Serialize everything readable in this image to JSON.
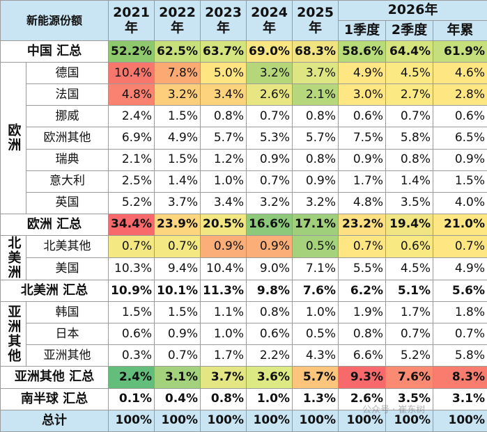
{
  "header": {
    "title": "新能源份额",
    "years": [
      "2021\n年",
      "2022\n年",
      "2023\n年",
      "2024\n年",
      "2025\n年"
    ],
    "year2026": "2026年",
    "sub2026": [
      "1季度",
      "2季度",
      "年累"
    ]
  },
  "rows": [
    {
      "label": "中国 汇总",
      "cells": [
        {
          "v": "52.2%",
          "bg": "#8fc96e"
        },
        {
          "v": "62.5%",
          "bg": "#c7e07c"
        },
        {
          "v": "63.7%",
          "bg": "#d4e47e"
        },
        {
          "v": "69.0%",
          "bg": "#f9e582"
        },
        {
          "v": "68.3%",
          "bg": "#f1e381"
        },
        {
          "v": "58.6%",
          "bg": "#b7db78"
        },
        {
          "v": "64.4%",
          "bg": "#d5e47e"
        },
        {
          "v": "61.9%",
          "bg": "#c4df7b"
        }
      ]
    },
    {
      "region": "欧洲",
      "label": "德国",
      "cells": [
        {
          "v": "10.4%",
          "bg": "#f8776d"
        },
        {
          "v": "7.8%",
          "bg": "#fcaa74"
        },
        {
          "v": "5.0%",
          "bg": "#fee582"
        },
        {
          "v": "3.2%",
          "bg": "#b5d77a"
        },
        {
          "v": "3.7%",
          "bg": "#dde683"
        },
        {
          "v": "4.9%",
          "bg": "#fee683"
        },
        {
          "v": "4.5%",
          "bg": "#fbe983"
        },
        {
          "v": "4.6%",
          "bg": "#fee683"
        }
      ]
    },
    {
      "label": "法国",
      "cells": [
        {
          "v": "4.8%",
          "bg": "#f98270"
        },
        {
          "v": "3.2%",
          "bg": "#fdcf7c"
        },
        {
          "v": "3.4%",
          "bg": "#fdd37d"
        },
        {
          "v": "2.6%",
          "bg": "#e7e683"
        },
        {
          "v": "2.1%",
          "bg": "#b6d77b"
        },
        {
          "v": "3.0%",
          "bg": "#fee683"
        },
        {
          "v": "2.7%",
          "bg": "#fbe983"
        },
        {
          "v": "2.8%",
          "bg": "#fee683"
        }
      ]
    },
    {
      "label": "挪威",
      "cells": [
        {
          "v": "2.4%"
        },
        {
          "v": "1.5%"
        },
        {
          "v": "0.8%"
        },
        {
          "v": "0.7%"
        },
        {
          "v": "0.8%"
        },
        {
          "v": "0.6%"
        },
        {
          "v": "0.7%"
        },
        {
          "v": "0.6%"
        }
      ]
    },
    {
      "label": "欧洲其他",
      "cells": [
        {
          "v": "6.9%"
        },
        {
          "v": "4.9%"
        },
        {
          "v": "5.7%"
        },
        {
          "v": "5.3%"
        },
        {
          "v": "5.7%"
        },
        {
          "v": "7.5%"
        },
        {
          "v": "5.8%"
        },
        {
          "v": "6.5%"
        }
      ]
    },
    {
      "label": "瑞典",
      "cells": [
        {
          "v": "2.1%"
        },
        {
          "v": "1.5%"
        },
        {
          "v": "1.2%"
        },
        {
          "v": "0.9%"
        },
        {
          "v": "0.8%"
        },
        {
          "v": "0.9%"
        },
        {
          "v": "0.8%"
        },
        {
          "v": "0.9%"
        }
      ]
    },
    {
      "label": "意大利",
      "cells": [
        {
          "v": "2.5%"
        },
        {
          "v": "1.4%"
        },
        {
          "v": "1.0%"
        },
        {
          "v": "0.7%"
        },
        {
          "v": "0.9%"
        },
        {
          "v": "1.7%"
        },
        {
          "v": "1.4%"
        },
        {
          "v": "1.5%"
        }
      ]
    },
    {
      "label": "英国",
      "cells": [
        {
          "v": "5.2%"
        },
        {
          "v": "3.7%"
        },
        {
          "v": "3.4%"
        },
        {
          "v": "3.2%"
        },
        {
          "v": "3.2%"
        },
        {
          "v": "4.8%"
        },
        {
          "v": "3.5%"
        },
        {
          "v": "4.0%"
        }
      ]
    },
    {
      "label": "欧洲 汇总",
      "cells": [
        {
          "v": "34.4%",
          "bg": "#f8696b"
        },
        {
          "v": "23.9%",
          "bg": "#fdd57f"
        },
        {
          "v": "20.5%",
          "bg": "#f2e683"
        },
        {
          "v": "16.6%",
          "bg": "#8cc97b"
        },
        {
          "v": "17.1%",
          "bg": "#a0cf7c"
        },
        {
          "v": "23.2%",
          "bg": "#fee082"
        },
        {
          "v": "19.4%",
          "bg": "#f1e583"
        },
        {
          "v": "21.0%",
          "bg": "#fee683"
        }
      ]
    },
    {
      "region": "北美洲",
      "label": "北美其他",
      "cells": [
        {
          "v": "0.7%",
          "bg": "#f4e883"
        },
        {
          "v": "0.7%",
          "bg": "#f4e883"
        },
        {
          "v": "0.9%",
          "bg": "#fcae78"
        },
        {
          "v": "0.9%",
          "bg": "#fcae78"
        },
        {
          "v": "0.5%",
          "bg": "#a6d27c"
        },
        {
          "v": "0.7%",
          "bg": "#fee683"
        },
        {
          "v": "0.6%",
          "bg": "#f8e983"
        },
        {
          "v": "0.7%",
          "bg": "#fee683"
        }
      ]
    },
    {
      "label": "美国",
      "cells": [
        {
          "v": "10.3%"
        },
        {
          "v": "9.4%"
        },
        {
          "v": "10.4%"
        },
        {
          "v": "9.0%"
        },
        {
          "v": "7.1%"
        },
        {
          "v": "5.5%"
        },
        {
          "v": "4.5%"
        },
        {
          "v": "4.9%"
        }
      ]
    },
    {
      "label": "北美洲 汇总",
      "cells": [
        {
          "v": "10.9%"
        },
        {
          "v": "10.1%"
        },
        {
          "v": "11.3%"
        },
        {
          "v": "9.8%"
        },
        {
          "v": "7.6%"
        },
        {
          "v": "6.2%"
        },
        {
          "v": "5.1%"
        },
        {
          "v": "5.6%"
        }
      ]
    },
    {
      "region": "亚洲其他",
      "label": "韩国",
      "cells": [
        {
          "v": "1.5%"
        },
        {
          "v": "1.5%"
        },
        {
          "v": "1.1%"
        },
        {
          "v": "0.8%"
        },
        {
          "v": "1.0%"
        },
        {
          "v": "1.9%"
        },
        {
          "v": "1.7%"
        },
        {
          "v": "1.8%"
        }
      ]
    },
    {
      "label": "日本",
      "cells": [
        {
          "v": "0.6%"
        },
        {
          "v": "0.9%"
        },
        {
          "v": "1.0%"
        },
        {
          "v": "0.6%"
        },
        {
          "v": "0.5%"
        },
        {
          "v": "0.8%"
        },
        {
          "v": "0.7%"
        },
        {
          "v": "0.7%"
        }
      ]
    },
    {
      "label": "亚洲其他",
      "cells": [
        {
          "v": "0.3%"
        },
        {
          "v": "0.7%"
        },
        {
          "v": "1.7%"
        },
        {
          "v": "2.2%"
        },
        {
          "v": "4.3%"
        },
        {
          "v": "6.6%"
        },
        {
          "v": "5.2%"
        },
        {
          "v": "5.8%"
        }
      ]
    },
    {
      "label": "亚洲其他 汇总",
      "cells": [
        {
          "v": "2.4%",
          "bg": "#63be7b"
        },
        {
          "v": "3.1%",
          "bg": "#a4d17c"
        },
        {
          "v": "3.7%",
          "bg": "#e4e683"
        },
        {
          "v": "3.6%",
          "bg": "#ddea83"
        },
        {
          "v": "5.7%",
          "bg": "#fdc47b"
        },
        {
          "v": "9.3%",
          "bg": "#f8696b"
        },
        {
          "v": "7.6%",
          "bg": "#fa8b72"
        },
        {
          "v": "8.3%",
          "bg": "#f97c6f"
        }
      ]
    },
    {
      "label": "南半球 汇总",
      "cells": [
        {
          "v": "0.1%"
        },
        {
          "v": "0.4%"
        },
        {
          "v": "0.8%"
        },
        {
          "v": "1.0%"
        },
        {
          "v": "1.3%"
        },
        {
          "v": "2.6%"
        },
        {
          "v": "3.5%"
        },
        {
          "v": "3.1%"
        }
      ]
    },
    {
      "label": "总计",
      "cells": [
        {
          "v": "100%"
        },
        {
          "v": "100%"
        },
        {
          "v": "100%"
        },
        {
          "v": "100%"
        },
        {
          "v": "100%"
        },
        {
          "v": "100%"
        },
        {
          "v": "100%"
        },
        {
          "v": "100%"
        }
      ]
    }
  ],
  "watermark": "公众号 · 崔东树"
}
